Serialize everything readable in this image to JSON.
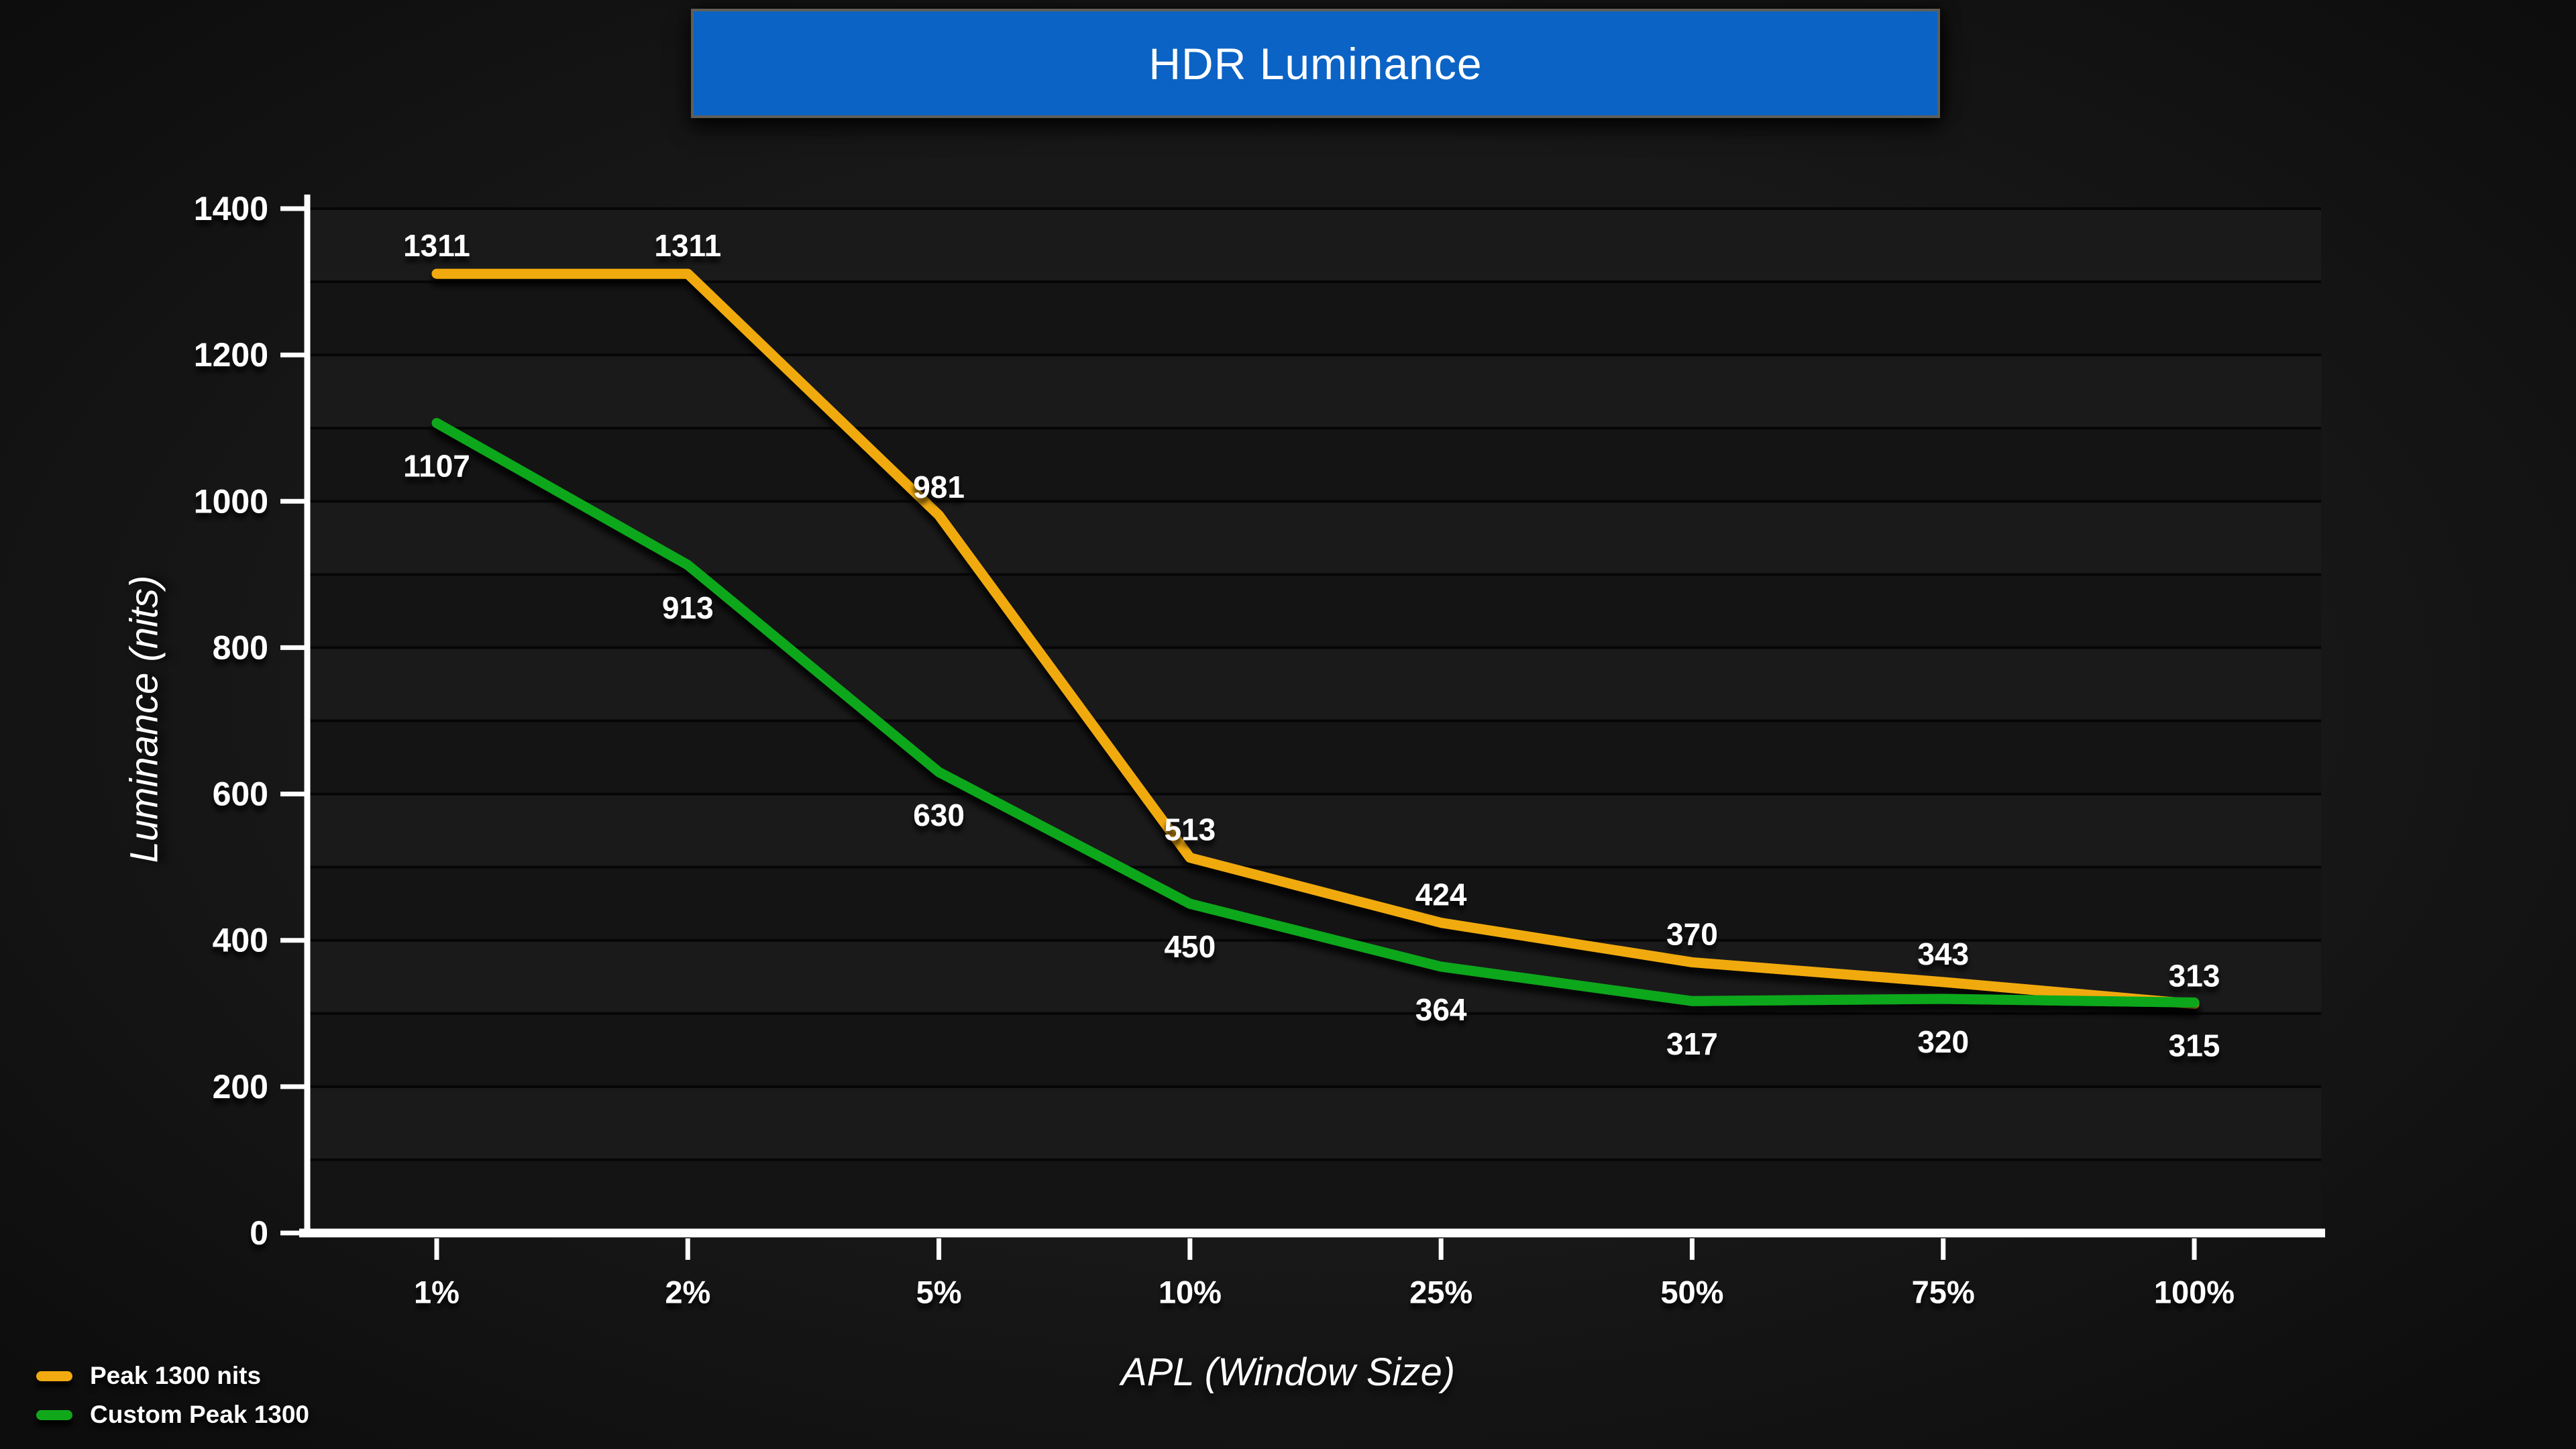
{
  "chart_data": {
    "type": "line",
    "title": "HDR Luminance",
    "xlabel": "APL (Window Size)",
    "ylabel": "Luminance (nits)",
    "categories": [
      "1%",
      "2%",
      "5%",
      "10%",
      "25%",
      "50%",
      "75%",
      "100%"
    ],
    "series": [
      {
        "name": "Peak 1300 nits",
        "color": "#F1AA10",
        "values": [
          1311,
          1311,
          981,
          513,
          424,
          370,
          343,
          313
        ]
      },
      {
        "name": "Custom Peak 1300",
        "color": "#11A71B",
        "values": [
          1107,
          913,
          630,
          450,
          364,
          317,
          320,
          315
        ]
      }
    ],
    "ylim": [
      0,
      1400
    ],
    "y_major_step": 200,
    "y_minor_step": 100,
    "y_tick_labels": [
      "0",
      "200",
      "400",
      "600",
      "800",
      "1000",
      "1200",
      "1400"
    ],
    "grid": "horizontal-only",
    "legend_position": "bottom-left",
    "data_labels_shown": true
  },
  "colors": {
    "banner_bg": "#0B63C5",
    "banner_border": "#5F5F57",
    "band_light": "#1A1A1A",
    "band_dark": "#141414",
    "gridline": "#060606",
    "axis": "#FFFFFF",
    "text": "#FFFFFF"
  }
}
